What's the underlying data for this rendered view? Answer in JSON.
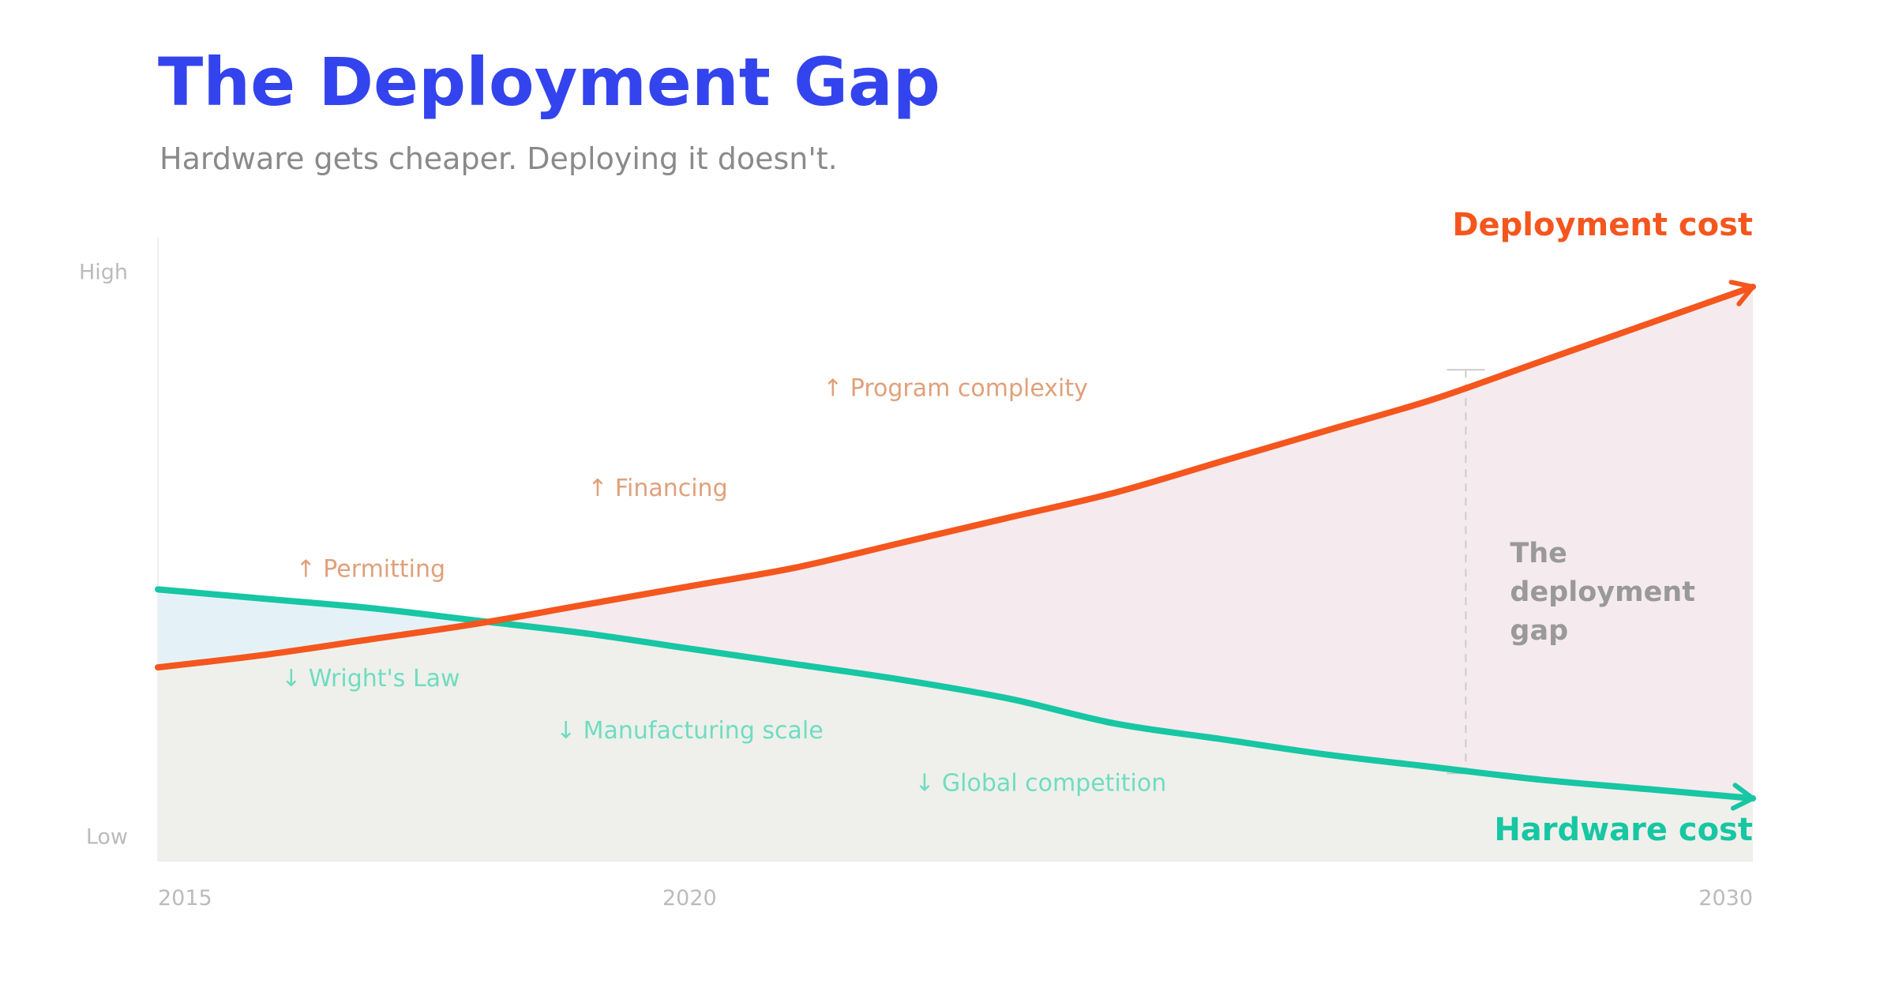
{
  "header": {
    "title": "The Deployment Gap",
    "subtitle": "Hardware gets cheaper. Deploying it doesn't."
  },
  "colors": {
    "title": "#3344ee",
    "deployment": "#f4561e",
    "hardware": "#17c6a3",
    "deployment_label_text": "#e0a07a",
    "hardware_label_text": "#6fdcc2",
    "gap_fill": "#f5eaee",
    "hardware_fill": "#e4f2f7",
    "base_fill": "#eff0eb",
    "axis_text": "#bbbbbb",
    "gap_text": "#999999"
  },
  "chart_data": {
    "type": "line",
    "title": "The Deployment Gap",
    "subtitle": "Hardware gets cheaper. Deploying it doesn't.",
    "x_range": [
      2015,
      2030
    ],
    "y_range": [
      0,
      1
    ],
    "x_ticks": [
      "2015",
      "2020",
      "2030"
    ],
    "x_tick_values": [
      2015,
      2020,
      2030
    ],
    "y_ticks": [
      "High",
      "Low"
    ],
    "y_tick_values": [
      0.945,
      0.04
    ],
    "grid": false,
    "series": [
      {
        "name": "Deployment cost",
        "key": "deployment",
        "x": [
          2015,
          2016,
          2017,
          2018,
          2019,
          2020,
          2021,
          2022,
          2023,
          2024,
          2025,
          2026,
          2027,
          2028,
          2029,
          2030
        ],
        "y": [
          0.31,
          0.33,
          0.355,
          0.38,
          0.41,
          0.44,
          0.47,
          0.51,
          0.55,
          0.59,
          0.64,
          0.69,
          0.74,
          0.8,
          0.86,
          0.92
        ]
      },
      {
        "name": "Hardware cost",
        "key": "hardware",
        "x": [
          2015,
          2016,
          2017,
          2018,
          2019,
          2020,
          2021,
          2022,
          2023,
          2024,
          2025,
          2026,
          2027,
          2028,
          2029,
          2030
        ],
        "y": [
          0.435,
          0.42,
          0.405,
          0.385,
          0.365,
          0.34,
          0.315,
          0.29,
          0.26,
          0.22,
          0.195,
          0.17,
          0.15,
          0.13,
          0.115,
          0.1
        ]
      }
    ],
    "annotations": {
      "deployment_drivers": [
        {
          "text": "↑ Permitting",
          "x": 2017.0,
          "y": 0.455
        },
        {
          "text": "↑ Financing",
          "x": 2019.7,
          "y": 0.585
        },
        {
          "text": "↑ Program complexity",
          "x": 2022.5,
          "y": 0.745
        }
      ],
      "hardware_drivers": [
        {
          "text": "↓ Wright's Law",
          "x": 2017.0,
          "y": 0.28
        },
        {
          "text": "↓ Manufacturing scale",
          "x": 2020.0,
          "y": 0.196
        },
        {
          "text": "↓ Global competition",
          "x": 2023.3,
          "y": 0.112
        }
      ],
      "gap": {
        "lines": [
          "The",
          "deployment",
          "gap"
        ],
        "x": 2027.3,
        "top": 0.787,
        "bottom": 0.14
      }
    }
  }
}
